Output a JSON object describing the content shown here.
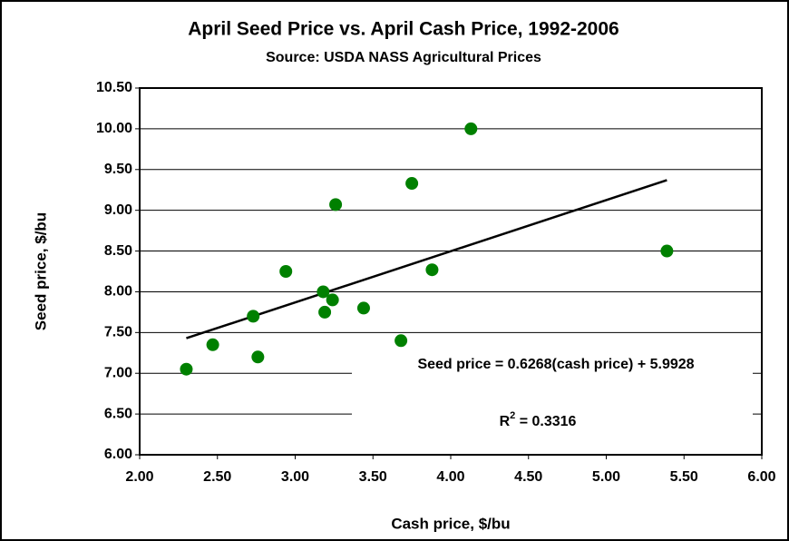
{
  "chart_data": {
    "type": "scatter",
    "title": "April Seed Price vs. April Cash Price, 1992-2006",
    "subtitle": "Source:  USDA NASS Agricultural Prices",
    "x_label": "Cash price, $/bu",
    "y_label": "Seed price, $/bu",
    "x": [
      2.3,
      2.47,
      2.73,
      2.76,
      2.94,
      3.18,
      3.19,
      3.24,
      3.26,
      3.44,
      3.68,
      3.75,
      3.88,
      4.13,
      5.39
    ],
    "values": [
      7.05,
      7.35,
      7.7,
      7.2,
      8.25,
      8.0,
      7.75,
      7.9,
      9.07,
      7.8,
      7.4,
      9.33,
      8.27,
      10.0,
      8.5
    ],
    "color": "#008000",
    "trendline": {
      "x": [
        2.3,
        5.39
      ],
      "values": [
        7.43,
        9.37
      ],
      "color": "#000000"
    },
    "equation": "Seed price = 0.6268(cash price) + 5.9928",
    "r_squared": {
      "symbol": "R",
      "power": "2",
      "text": " = 0.3316"
    },
    "xlim": [
      2,
      6
    ],
    "xticks": [
      {
        "value": 2,
        "label": "2.00"
      },
      {
        "value": 2.5,
        "label": "2.50"
      },
      {
        "value": 3,
        "label": "3.00"
      },
      {
        "value": 3.5,
        "label": "3.50"
      },
      {
        "value": 4,
        "label": "4.00"
      },
      {
        "value": 4.5,
        "label": "4.50"
      },
      {
        "value": 5,
        "label": "5.00"
      },
      {
        "value": 5.5,
        "label": "5.50"
      },
      {
        "value": 6,
        "label": "6.00"
      }
    ],
    "ylim": [
      6,
      10.5
    ],
    "yticks": [
      {
        "value": 6,
        "label": "6.00"
      },
      {
        "value": 6.5,
        "label": "6.50"
      },
      {
        "value": 7,
        "label": "7.00"
      },
      {
        "value": 7.5,
        "label": "7.50"
      },
      {
        "value": 8,
        "label": "8.00"
      },
      {
        "value": 8.5,
        "label": "8.50"
      },
      {
        "value": 9,
        "label": "9.00"
      },
      {
        "value": 9.5,
        "label": "9.50"
      },
      {
        "value": 10,
        "label": "10.00"
      },
      {
        "value": 10.5,
        "label": "10.50"
      }
    ],
    "grid": true
  }
}
